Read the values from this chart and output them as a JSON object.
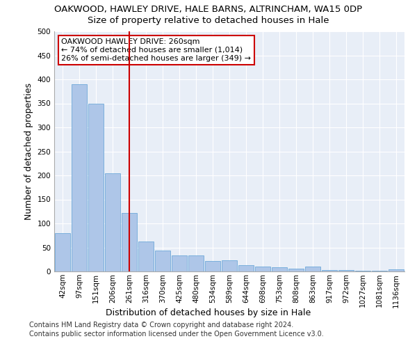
{
  "title_line1": "OAKWOOD, HAWLEY DRIVE, HALE BARNS, ALTRINCHAM, WA15 0DP",
  "title_line2": "Size of property relative to detached houses in Hale",
  "xlabel": "Distribution of detached houses by size in Hale",
  "ylabel": "Number of detached properties",
  "categories": [
    "42sqm",
    "97sqm",
    "151sqm",
    "206sqm",
    "261sqm",
    "316sqm",
    "370sqm",
    "425sqm",
    "480sqm",
    "534sqm",
    "589sqm",
    "644sqm",
    "698sqm",
    "753sqm",
    "808sqm",
    "863sqm",
    "917sqm",
    "972sqm",
    "1027sqm",
    "1081sqm",
    "1136sqm"
  ],
  "values": [
    80,
    390,
    350,
    205,
    122,
    63,
    44,
    33,
    33,
    22,
    23,
    13,
    10,
    9,
    6,
    10,
    3,
    3,
    2,
    2,
    4
  ],
  "bar_color": "#aec6e8",
  "bar_edge_color": "#5a9fd4",
  "vline_x": 4,
  "vline_color": "#cc0000",
  "annotation_text": "OAKWOOD HAWLEY DRIVE: 260sqm\n← 74% of detached houses are smaller (1,014)\n26% of semi-detached houses are larger (349) →",
  "annotation_box_color": "#ffffff",
  "annotation_box_edge_color": "#cc0000",
  "ylim": [
    0,
    500
  ],
  "yticks": [
    0,
    50,
    100,
    150,
    200,
    250,
    300,
    350,
    400,
    450,
    500
  ],
  "footer_line1": "Contains HM Land Registry data © Crown copyright and database right 2024.",
  "footer_line2": "Contains public sector information licensed under the Open Government Licence v3.0.",
  "bg_color": "#e8eef7",
  "fig_bg_color": "#ffffff",
  "grid_color": "#ffffff",
  "title_fontsize": 9.5,
  "subtitle_fontsize": 9.5,
  "axis_label_fontsize": 9,
  "tick_fontsize": 7.5,
  "annotation_fontsize": 8,
  "footer_fontsize": 7
}
